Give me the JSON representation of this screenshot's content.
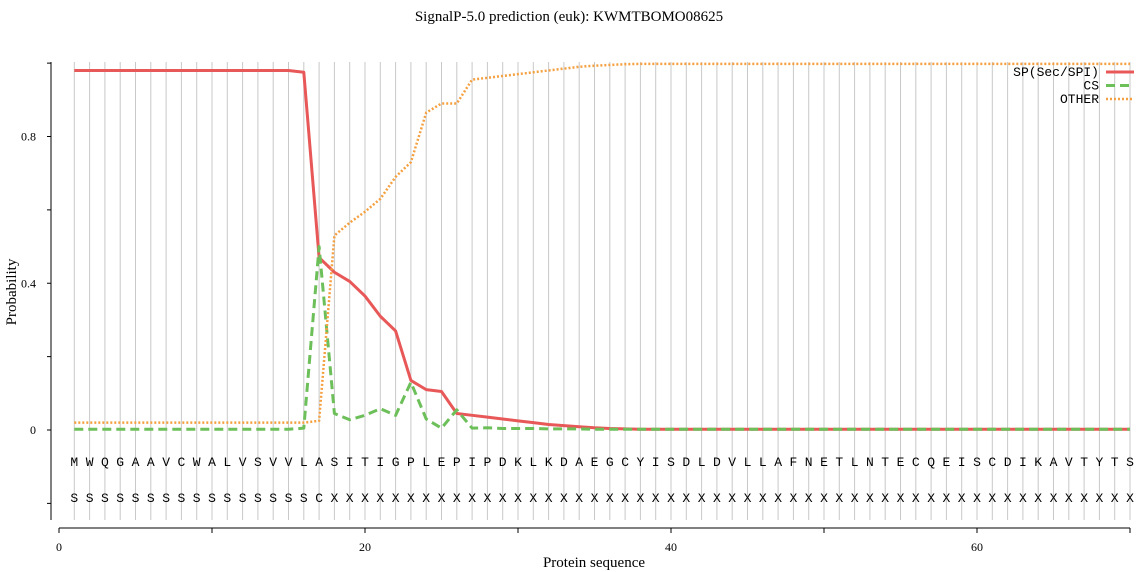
{
  "chart_data": {
    "type": "line",
    "title": "SignalP-5.0 prediction (euk):  KWMTBOMO08625",
    "xlabel": "Protein sequence",
    "ylabel": "Probability",
    "xlim": [
      0,
      70
    ],
    "ylim": [
      -0.25,
      1.0
    ],
    "x_ticks": [
      0,
      20,
      40,
      60
    ],
    "y_ticks": [
      0,
      0.4,
      0.8
    ],
    "x_tick_labels": [
      "0",
      "20",
      "40",
      "60"
    ],
    "y_tick_labels": [
      "0",
      "0.4",
      "0.8"
    ],
    "legend_position": "top-right",
    "sequence": [
      "M",
      "W",
      "Q",
      "G",
      "A",
      "A",
      "V",
      "C",
      "W",
      "A",
      "L",
      "V",
      "S",
      "V",
      "V",
      "L",
      "A",
      "S",
      "I",
      "T",
      "I",
      "G",
      "P",
      "L",
      "E",
      "P",
      "I",
      "P",
      "D",
      "K",
      "L",
      "K",
      "D",
      "A",
      "E",
      "G",
      "C",
      "Y",
      "I",
      "S",
      "D",
      "L",
      "D",
      "V",
      "L",
      "L",
      "A",
      "F",
      "N",
      "E",
      "T",
      "L",
      "N",
      "T",
      "E",
      "C",
      "Q",
      "E",
      "I",
      "S",
      "C",
      "D",
      "I",
      "K",
      "A",
      "V",
      "T",
      "Y",
      "T",
      "S"
    ],
    "annotation": [
      "S",
      "S",
      "S",
      "S",
      "S",
      "S",
      "S",
      "S",
      "S",
      "S",
      "S",
      "S",
      "S",
      "S",
      "S",
      "S",
      "C",
      "X",
      "X",
      "X",
      "X",
      "X",
      "X",
      "X",
      "X",
      "X",
      "X",
      "X",
      "X",
      "X",
      "X",
      "X",
      "X",
      "X",
      "X",
      "X",
      "X",
      "X",
      "X",
      "X",
      "X",
      "X",
      "X",
      "X",
      "X",
      "X",
      "X",
      "X",
      "X",
      "X",
      "X",
      "X",
      "X",
      "X",
      "X",
      "X",
      "X",
      "X",
      "X",
      "X",
      "X",
      "X",
      "X",
      "X",
      "X",
      "X",
      "X",
      "X",
      "X",
      "X"
    ],
    "series": [
      {
        "name": "SP(Sec/SPI)",
        "color": "#e85858",
        "style": "solid",
        "values": [
          0.98,
          0.98,
          0.98,
          0.98,
          0.98,
          0.98,
          0.98,
          0.98,
          0.98,
          0.98,
          0.98,
          0.98,
          0.98,
          0.98,
          0.98,
          0.975,
          0.47,
          0.43,
          0.405,
          0.365,
          0.31,
          0.27,
          0.135,
          0.11,
          0.105,
          0.045,
          0.04,
          0.035,
          0.03,
          0.025,
          0.02,
          0.015,
          0.012,
          0.009,
          0.006,
          0.004,
          0.003,
          0.002,
          0.002,
          0.002,
          0.002,
          0.002,
          0.002,
          0.002,
          0.002,
          0.002,
          0.002,
          0.002,
          0.002,
          0.002,
          0.002,
          0.002,
          0.002,
          0.002,
          0.002,
          0.002,
          0.002,
          0.002,
          0.002,
          0.002,
          0.002,
          0.002,
          0.002,
          0.002,
          0.002,
          0.002,
          0.002,
          0.002,
          0.002,
          0.002
        ]
      },
      {
        "name": "CS",
        "color": "#6dbf5a",
        "style": "dashed",
        "values": [
          0.002,
          0.002,
          0.002,
          0.002,
          0.002,
          0.002,
          0.002,
          0.002,
          0.002,
          0.002,
          0.002,
          0.002,
          0.002,
          0.002,
          0.002,
          0.005,
          0.5,
          0.045,
          0.028,
          0.04,
          0.058,
          0.04,
          0.13,
          0.03,
          0.005,
          0.055,
          0.005,
          0.006,
          0.004,
          0.004,
          0.004,
          0.003,
          0.003,
          0.003,
          0.002,
          0.002,
          0.002,
          0.002,
          0.002,
          0.002,
          0.002,
          0.002,
          0.002,
          0.002,
          0.002,
          0.002,
          0.002,
          0.002,
          0.002,
          0.002,
          0.002,
          0.002,
          0.002,
          0.002,
          0.002,
          0.002,
          0.002,
          0.002,
          0.002,
          0.002,
          0.002,
          0.002,
          0.002,
          0.002,
          0.002,
          0.002,
          0.002,
          0.002,
          0.002,
          0.002
        ]
      },
      {
        "name": "OTHER",
        "color": "#f5a040",
        "style": "dotted",
        "values": [
          0.02,
          0.02,
          0.02,
          0.02,
          0.02,
          0.02,
          0.02,
          0.02,
          0.02,
          0.02,
          0.02,
          0.02,
          0.02,
          0.02,
          0.02,
          0.02,
          0.025,
          0.53,
          0.565,
          0.595,
          0.63,
          0.69,
          0.73,
          0.865,
          0.89,
          0.89,
          0.955,
          0.96,
          0.965,
          0.97,
          0.975,
          0.98,
          0.985,
          0.99,
          0.993,
          0.995,
          0.997,
          0.998,
          0.998,
          0.998,
          0.998,
          0.998,
          0.998,
          0.998,
          0.998,
          0.998,
          0.998,
          0.998,
          0.998,
          0.998,
          0.998,
          0.998,
          0.998,
          0.998,
          0.998,
          0.998,
          0.998,
          0.998,
          0.998,
          0.998,
          0.998,
          0.998,
          0.998,
          0.998,
          0.998,
          0.998,
          0.998,
          0.998,
          0.998,
          0.998
        ]
      }
    ]
  }
}
